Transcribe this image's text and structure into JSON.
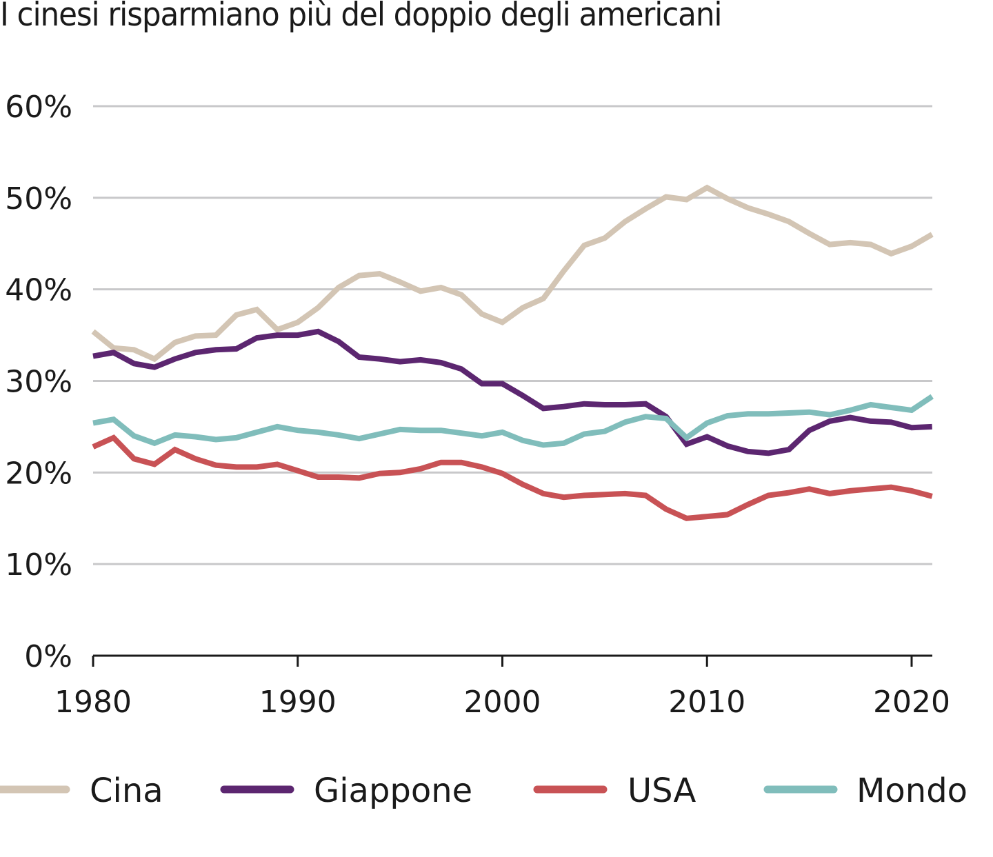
{
  "chart_data": {
    "type": "line",
    "title": "I cinesi risparmiano più del doppio degli americani",
    "xlabel": "",
    "ylabel": "",
    "xlim": [
      1980,
      2021
    ],
    "ylim": [
      0,
      60
    ],
    "grid": true,
    "legend_position": "bottom",
    "x_ticks": [
      1980,
      1990,
      2000,
      2010,
      2020
    ],
    "x_tick_labels": [
      "1980",
      "1990",
      "2000",
      "2010",
      "2020"
    ],
    "y_ticks": [
      0,
      10,
      20,
      30,
      40,
      50,
      60
    ],
    "y_tick_labels": [
      "0%",
      "10%",
      "20%",
      "30%",
      "40%",
      "50%",
      "60%"
    ],
    "x": [
      1980,
      1981,
      1982,
      1983,
      1984,
      1985,
      1986,
      1987,
      1988,
      1989,
      1990,
      1991,
      1992,
      1993,
      1994,
      1995,
      1996,
      1997,
      1998,
      1999,
      2000,
      2001,
      2002,
      2003,
      2004,
      2005,
      2006,
      2007,
      2008,
      2009,
      2010,
      2011,
      2012,
      2013,
      2014,
      2015,
      2016,
      2017,
      2018,
      2019,
      2020,
      2021
    ],
    "series": [
      {
        "name": "Cina",
        "color": "#d3c5b4",
        "values": [
          35.4,
          33.6,
          33.4,
          32.4,
          34.2,
          34.9,
          35.0,
          37.2,
          37.8,
          35.6,
          36.4,
          38.0,
          40.2,
          41.5,
          41.7,
          40.8,
          39.8,
          40.2,
          39.4,
          37.3,
          36.4,
          38.0,
          39.0,
          42.0,
          44.8,
          45.6,
          47.4,
          48.8,
          50.1,
          49.8,
          51.1,
          49.9,
          48.9,
          48.2,
          47.4,
          46.1,
          44.9,
          45.1,
          44.9,
          43.9,
          44.7,
          46.0
        ]
      },
      {
        "name": "Giappone",
        "color": "#5c2670",
        "values": [
          32.7,
          33.1,
          31.9,
          31.5,
          32.4,
          33.1,
          33.4,
          33.5,
          34.7,
          35.0,
          35.0,
          35.4,
          34.3,
          32.6,
          32.4,
          32.1,
          32.3,
          32.0,
          31.3,
          29.7,
          29.7,
          28.4,
          27.0,
          27.2,
          27.5,
          27.4,
          27.4,
          27.5,
          26.1,
          23.1,
          23.9,
          22.9,
          22.3,
          22.1,
          22.5,
          24.6,
          25.6,
          26.0,
          25.6,
          25.5,
          24.9,
          25.0
        ]
      },
      {
        "name": "USA",
        "color": "#c85255",
        "values": [
          22.8,
          23.8,
          21.5,
          20.9,
          22.5,
          21.5,
          20.8,
          20.6,
          20.6,
          20.9,
          20.2,
          19.5,
          19.5,
          19.4,
          19.9,
          20.0,
          20.4,
          21.1,
          21.1,
          20.6,
          19.9,
          18.7,
          17.7,
          17.3,
          17.5,
          17.6,
          17.7,
          17.5,
          16.0,
          15.0,
          15.2,
          15.4,
          16.5,
          17.5,
          17.8,
          18.2,
          17.7,
          18.0,
          18.2,
          18.4,
          18.0,
          17.4
        ]
      },
      {
        "name": "Mondo",
        "color": "#80bdbb",
        "values": [
          25.4,
          25.8,
          24.0,
          23.2,
          24.1,
          23.9,
          23.6,
          23.8,
          24.4,
          25.0,
          24.6,
          24.4,
          24.1,
          23.7,
          24.2,
          24.7,
          24.6,
          24.6,
          24.3,
          24.0,
          24.4,
          23.5,
          23.0,
          23.2,
          24.2,
          24.5,
          25.5,
          26.1,
          25.9,
          23.8,
          25.4,
          26.2,
          26.4,
          26.4,
          26.5,
          26.6,
          26.3,
          26.8,
          27.4,
          27.1,
          26.8,
          28.3
        ]
      }
    ],
    "colors": {
      "grid": "#c8c8ca",
      "axis": "#1a1a1a"
    }
  }
}
